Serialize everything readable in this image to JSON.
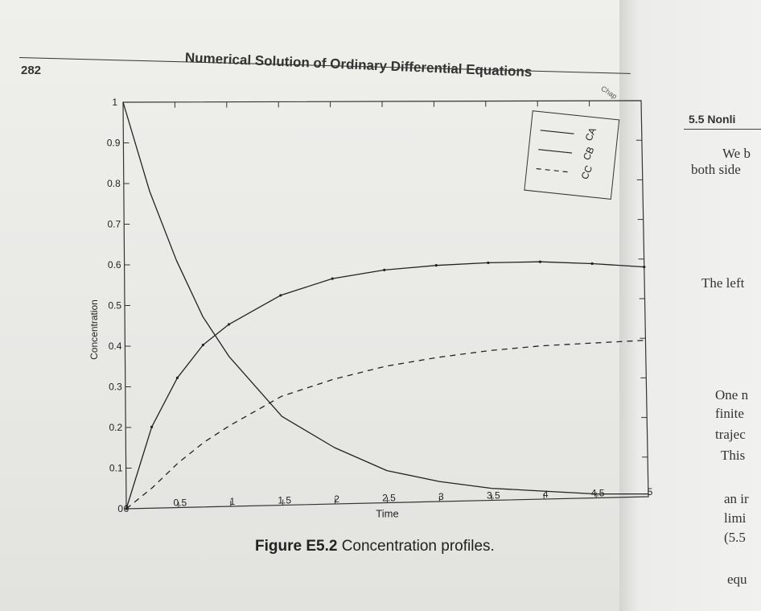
{
  "page": {
    "number": "282",
    "running_head": "Numerical Solution of Ordinary Differential Equations",
    "running_head_tail": "Chap"
  },
  "caption": {
    "label": "Figure E5.2",
    "text": "Concentration profiles."
  },
  "right_page": {
    "section": "5.5 Nonli",
    "fragments": [
      "We b",
      "both side",
      "The left",
      "One n",
      "finite",
      "trajec",
      "This",
      "an ir",
      "limi",
      "(5.5",
      "equ"
    ]
  },
  "chart_data": {
    "type": "line",
    "xlabel": "Time",
    "ylabel": "Concentration",
    "xlim": [
      0,
      5
    ],
    "ylim": [
      0,
      1
    ],
    "x_ticks": [
      "0",
      "0.5",
      "1",
      "1.5",
      "2",
      "2.5",
      "3",
      "3.5",
      "4",
      "4.5",
      "5"
    ],
    "y_ticks": [
      "0",
      "0.1",
      "0.2",
      "0.3",
      "0.4",
      "0.5",
      "0.6",
      "0.7",
      "0.8",
      "0.9",
      "1"
    ],
    "legend_position": "top-right",
    "grid": false,
    "x": [
      0,
      0.25,
      0.5,
      0.75,
      1.0,
      1.5,
      2.0,
      2.5,
      3.0,
      3.5,
      4.0,
      4.5,
      5.0
    ],
    "series": [
      {
        "name": "CA",
        "style": "solid",
        "values": [
          1.0,
          0.78,
          0.61,
          0.47,
          0.37,
          0.22,
          0.14,
          0.08,
          0.05,
          0.03,
          0.02,
          0.01,
          0.007
        ]
      },
      {
        "name": "CB",
        "style": "solid-dotted",
        "values": [
          0.0,
          0.2,
          0.32,
          0.4,
          0.45,
          0.52,
          0.56,
          0.58,
          0.59,
          0.595,
          0.596,
          0.59,
          0.58
        ]
      },
      {
        "name": "CC",
        "style": "dashed",
        "values": [
          0.0,
          0.05,
          0.11,
          0.16,
          0.2,
          0.27,
          0.31,
          0.34,
          0.36,
          0.375,
          0.385,
          0.39,
          0.395
        ]
      }
    ]
  }
}
